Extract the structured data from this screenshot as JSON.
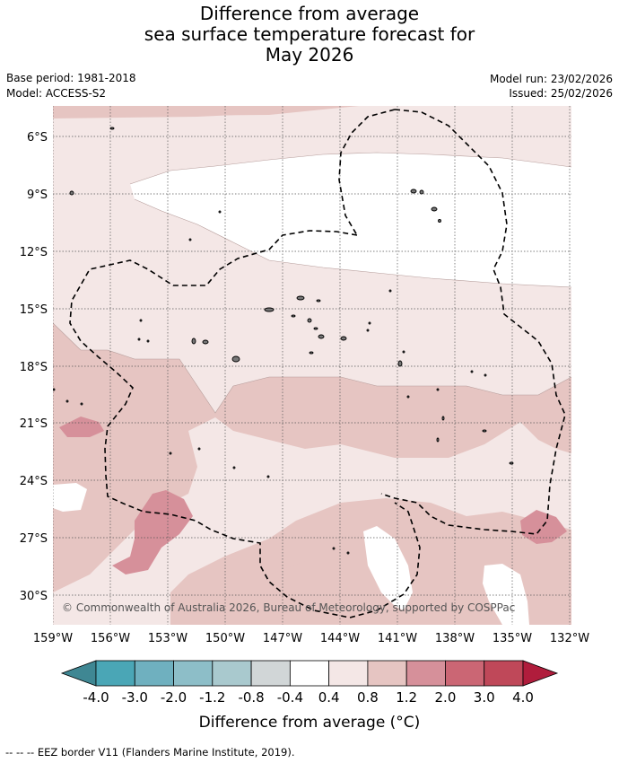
{
  "header": {
    "title_line1": "Difference from average",
    "title_line2": "sea surface temperature forecast for",
    "title_line3": "May 2026",
    "base_period": "Base period: 1981-2018",
    "model": "Model: ACCESS-S2",
    "model_run": "Model run: 23/02/2026",
    "issued": "Issued: 25/02/2026"
  },
  "map": {
    "lat_labels": [
      "6°S",
      "9°S",
      "12°S",
      "15°S",
      "18°S",
      "21°S",
      "24°S",
      "27°S",
      "30°S"
    ],
    "lon_labels": [
      "159°W",
      "156°W",
      "153°W",
      "150°W",
      "147°W",
      "144°W",
      "141°W",
      "138°W",
      "135°W",
      "132°W"
    ],
    "copyright": "© Commonwealth of Australia 2026, Bureau of Meteorology, supported by COSPPac",
    "colors": {
      "c_04_08": "#f4e7e6",
      "c_08_12": "#e6c5c2",
      "c_12_20": "#d6909a",
      "neutral": "#ffffff",
      "grid": "#555555",
      "eez": "#000000"
    }
  },
  "colorbar": {
    "ticks": [
      "-4.0",
      "-3.0",
      "-2.0",
      "-1.2",
      "-0.8",
      "-0.4",
      "0.4",
      "0.8",
      "1.2",
      "2.0",
      "3.0",
      "4.0"
    ],
    "colors": [
      "#3f8793",
      "#4aa6b6",
      "#6fb0bf",
      "#8dbec8",
      "#a9c9ce",
      "#d1d6d7",
      "#ffffff",
      "#f4e7e6",
      "#e6c5c2",
      "#d6909a",
      "#cb6674",
      "#bf4859",
      "#b01d3c"
    ],
    "label": "Difference from average (°C)"
  },
  "footer": {
    "legend": "-- -- -- EEZ border V11 (Flanders Marine Institute, 2019)."
  }
}
